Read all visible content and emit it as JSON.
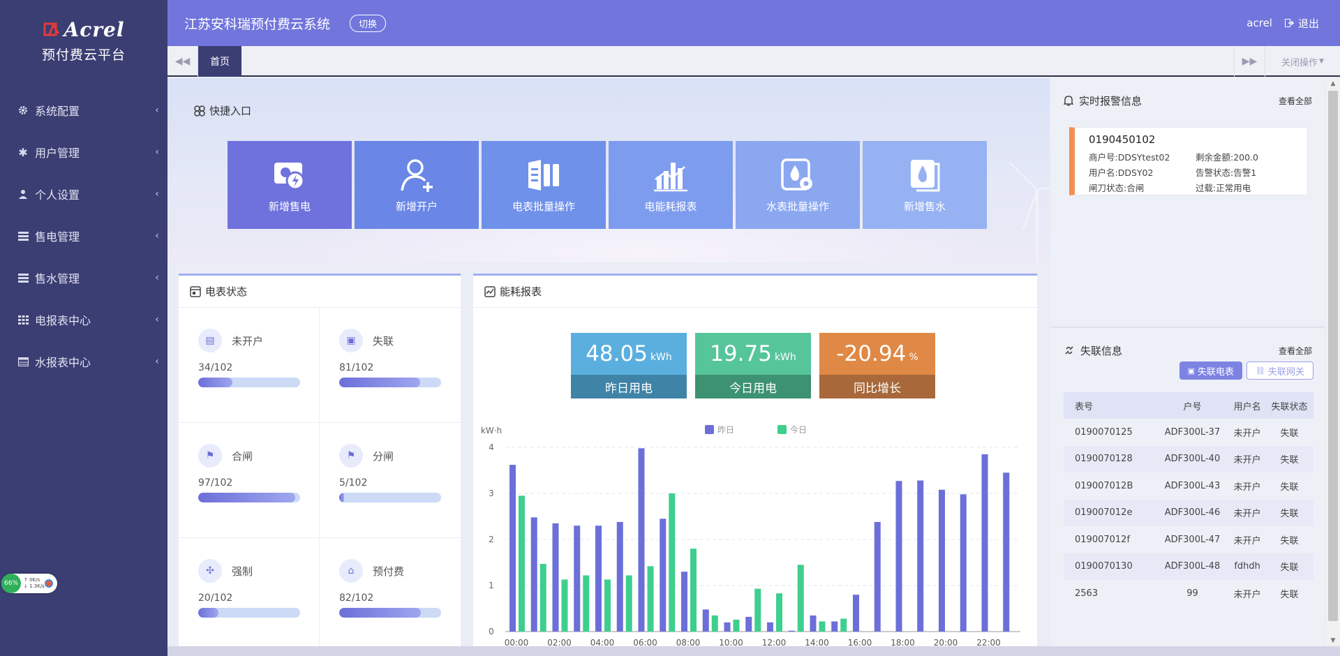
{
  "brand": {
    "logo_text": "Acrel",
    "subtitle": "预付费云平台"
  },
  "sidebar": {
    "items": [
      {
        "label": "系统配置",
        "icon": "gear-icon"
      },
      {
        "label": "用户管理",
        "icon": "asterisk-icon"
      },
      {
        "label": "个人设置",
        "icon": "user-icon"
      },
      {
        "label": "售电管理",
        "icon": "list-icon"
      },
      {
        "label": "售水管理",
        "icon": "list-icon"
      },
      {
        "label": "电报表中心",
        "icon": "grid-icon"
      },
      {
        "label": "水报表中心",
        "icon": "table-icon"
      }
    ]
  },
  "net_widget": {
    "percent": "66%",
    "up": "0K/s",
    "down": "1.3K/s"
  },
  "header": {
    "title": "江苏安科瑞预付费云系统",
    "switch_label": "切换",
    "username": "acrel",
    "logout_label": "退出"
  },
  "tabs": {
    "active": "首页",
    "close_ops": "关闭操作"
  },
  "quick": {
    "title": "快捷入口",
    "tiles": [
      {
        "label": "新增售电",
        "color": "#6f72dc"
      },
      {
        "label": "新增开户",
        "color": "#6a86e6"
      },
      {
        "label": "电表批量操作",
        "color": "#7091ea"
      },
      {
        "label": "电能耗报表",
        "color": "#7e9cee"
      },
      {
        "label": "水表批量操作",
        "color": "#8aa7f0"
      },
      {
        "label": "新增售水",
        "color": "#96b2f3"
      }
    ]
  },
  "meter_status": {
    "title": "电表状态",
    "items": [
      {
        "label": "未开户",
        "value": "34/102",
        "ratio": 0.333
      },
      {
        "label": "失联",
        "value": "81/102",
        "ratio": 0.794
      },
      {
        "label": "合闸",
        "value": "97/102",
        "ratio": 0.951
      },
      {
        "label": "分闸",
        "value": "5/102",
        "ratio": 0.049
      },
      {
        "label": "强制",
        "value": "20/102",
        "ratio": 0.196
      },
      {
        "label": "预付费",
        "value": "82/102",
        "ratio": 0.804
      }
    ]
  },
  "energy": {
    "title": "能耗报表",
    "kpis": [
      {
        "value": "48.05",
        "unit": "kWh",
        "label": "昨日用电",
        "top": "#5aafde",
        "bottom": "#3f84a7"
      },
      {
        "value": "19.75",
        "unit": "kWh",
        "label": "今日用电",
        "top": "#56c59a",
        "bottom": "#3c9271"
      },
      {
        "value": "-20.94",
        "unit": "%",
        "label": "同比增长",
        "top": "#e08845",
        "bottom": "#a8683a"
      }
    ]
  },
  "chart_data": {
    "type": "bar",
    "ylabel": "kW·h",
    "ylim": [
      0,
      4
    ],
    "yticks": [
      "0",
      "1",
      "2",
      "3",
      "4"
    ],
    "x_tick_labels": [
      "00:00",
      "02:00",
      "04:00",
      "06:00",
      "08:00",
      "10:00",
      "12:00",
      "14:00",
      "16:00",
      "18:00",
      "20:00",
      "22:00"
    ],
    "legend_position": "top-center",
    "grid": true,
    "series": [
      {
        "name": "昨日",
        "color": "#6c6fd8",
        "values": [
          3.62,
          2.48,
          2.35,
          2.3,
          2.3,
          2.38,
          3.98,
          2.45,
          1.3,
          0.48,
          0.2,
          0.32,
          0.2,
          0.02,
          0.35,
          0.22,
          0.8,
          2.38,
          3.27,
          3.28,
          3.08,
          2.98,
          3.85,
          3.45
        ]
      },
      {
        "name": "今日",
        "color": "#3ecf8e",
        "values": [
          2.95,
          1.47,
          1.13,
          1.22,
          1.13,
          1.22,
          1.42,
          3.0,
          1.8,
          0.35,
          0.26,
          0.93,
          0.83,
          1.45,
          0.22,
          0.28,
          0,
          0,
          0,
          0,
          0,
          0,
          0,
          0
        ]
      }
    ]
  },
  "alarm": {
    "title": "实时报警信息",
    "view_all": "查看全部",
    "item": {
      "id": "0190450102",
      "fields": [
        "商户号:DDSYtest02",
        "剩余金额:200.0",
        "用户名:DDSY02",
        "告警状态:告警1",
        "闸刀状态:合闸",
        "过载:正常用电"
      ]
    }
  },
  "lost": {
    "title": "失联信息",
    "view_all": "查看全部",
    "tab_meter": "失联电表",
    "tab_gateway": "失联网关",
    "columns": [
      "表号",
      "户号",
      "用户名",
      "失联状态"
    ],
    "rows": [
      [
        "0190070125",
        "ADF300L-37",
        "未开户",
        "失联"
      ],
      [
        "0190070128",
        "ADF300L-40",
        "未开户",
        "失联"
      ],
      [
        "019007012B",
        "ADF300L-43",
        "未开户",
        "失联"
      ],
      [
        "019007012e",
        "ADF300L-46",
        "未开户",
        "失联"
      ],
      [
        "019007012f",
        "ADF300L-47",
        "未开户",
        "失联"
      ],
      [
        "0190070130",
        "ADF300L-48",
        "fdhdh",
        "失联"
      ],
      [
        "2563",
        "99",
        "未开户",
        "失联"
      ]
    ]
  }
}
